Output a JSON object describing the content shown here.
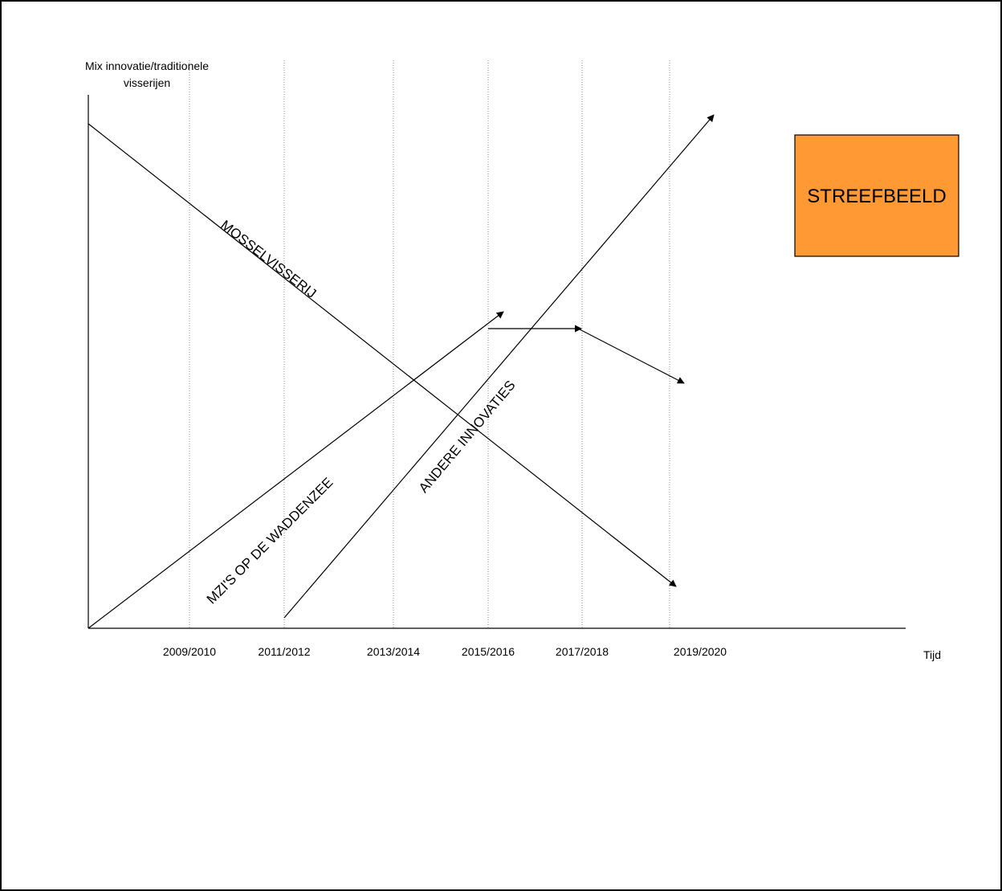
{
  "diagram": {
    "y_axis_label_line1": "Mix innovatie/traditionele",
    "y_axis_label_line2": "visserijen",
    "x_axis_label": "Tijd",
    "ticks": [
      "2009/2010",
      "2011/2012",
      "2013/2014",
      "2015/2016",
      "2017/2018",
      "2019/2020"
    ],
    "line_labels": {
      "mussel_fishery": "MOSSELVISSERIJ",
      "mzi_waddenzee": "MZI'S OP DE WADDENZEE",
      "other_innovations": "ANDERE INNOVATIES"
    },
    "goal_box": {
      "label": "STREEFBEELD",
      "fill": "#ff9933"
    }
  }
}
